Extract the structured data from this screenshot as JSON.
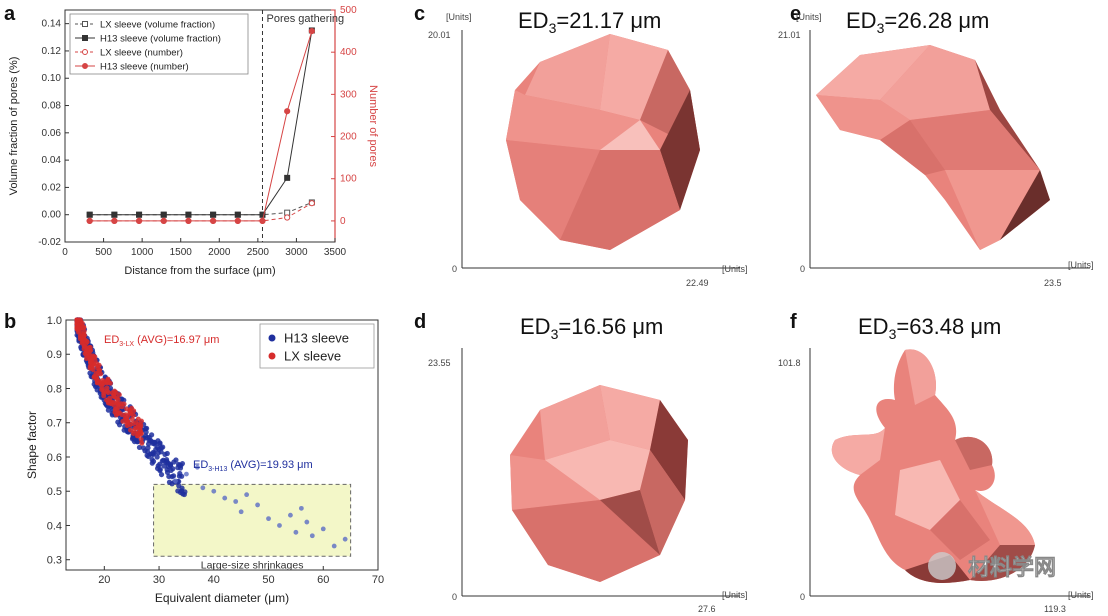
{
  "panels": {
    "a": {
      "letter": "a"
    },
    "b": {
      "letter": "b"
    },
    "c": {
      "letter": "c"
    },
    "d": {
      "letter": "d"
    },
    "e": {
      "letter": "e"
    },
    "f": {
      "letter": "f"
    }
  },
  "chart_data": [
    {
      "id": "a",
      "type": "line",
      "xlabel": "Distance from the surface (μm)",
      "ylabel": "Volume fraction of pores (%)",
      "y2label": "Number of pores",
      "xlim": [
        0,
        3500
      ],
      "ylim": [
        -0.02,
        0.15
      ],
      "y2lim": [
        -50,
        500
      ],
      "xticks": [
        "0",
        "500",
        "1000",
        "1500",
        "2000",
        "2500",
        "3000",
        "3500"
      ],
      "xtick_values": [
        0,
        500,
        1000,
        1500,
        2000,
        2500,
        3000,
        3500
      ],
      "yticks": [
        "-0.02",
        "0.00",
        "0.02",
        "0.04",
        "0.06",
        "0.08",
        "0.10",
        "0.12",
        "0.14"
      ],
      "ytick_values": [
        -0.02,
        0,
        0.02,
        0.04,
        0.06,
        0.08,
        0.1,
        0.12,
        0.14
      ],
      "y2ticks": [
        "0",
        "100",
        "200",
        "300",
        "400",
        "500"
      ],
      "y2tick_values": [
        0,
        100,
        200,
        300,
        400,
        500
      ],
      "annotation": "Pores gathering",
      "annotation_x": 2560,
      "x": [
        320,
        640,
        960,
        1280,
        1600,
        1920,
        2240,
        2560,
        2880,
        3200
      ],
      "series": [
        {
          "name": "LX sleeve (volume fraction)",
          "axis": "left",
          "color": "#555555",
          "dash": true,
          "marker": "square-open",
          "values": [
            0,
            0,
            0,
            0,
            0,
            0,
            0,
            0,
            0.0015,
            0.009
          ]
        },
        {
          "name": "H13 sleeve (volume fraction)",
          "axis": "left",
          "color": "#333333",
          "dash": false,
          "marker": "square",
          "values": [
            0,
            0,
            0,
            0,
            0,
            0,
            0,
            0,
            0.027,
            0.135
          ]
        },
        {
          "name": "LX sleeve (number)",
          "axis": "right",
          "color": "#d64545",
          "dash": true,
          "marker": "circle-open",
          "values": [
            0,
            0,
            0,
            0,
            0,
            0,
            0,
            0,
            8,
            42
          ]
        },
        {
          "name": "H13 sleeve (number)",
          "axis": "right",
          "color": "#d64545",
          "dash": false,
          "marker": "circle",
          "values": [
            0,
            0,
            0,
            0,
            0,
            0,
            0,
            0,
            260,
            450
          ]
        }
      ]
    },
    {
      "id": "b",
      "type": "scatter",
      "xlabel": "Equivalent diameter (μm)",
      "ylabel": "Shape factor",
      "xlim": [
        13,
        70
      ],
      "ylim": [
        0.27,
        1.0
      ],
      "xticks": [
        "20",
        "30",
        "40",
        "50",
        "60",
        "70"
      ],
      "xtick_values": [
        20,
        30,
        40,
        50,
        60,
        70
      ],
      "yticks": [
        "0.3",
        "0.4",
        "0.5",
        "0.6",
        "0.7",
        "0.8",
        "0.9",
        "1.0"
      ],
      "ytick_values": [
        0.3,
        0.4,
        0.5,
        0.6,
        0.7,
        0.8,
        0.9,
        1.0
      ],
      "legend": [
        {
          "name": "H13 sleeve",
          "color": "#1f2f9e"
        },
        {
          "name": "LX sleeve",
          "color": "#d62c2c"
        }
      ],
      "annotation_lx": "ED",
      "annotation_lx_sub": "3-LX",
      "annotation_lx_rest": " (AVG)=16.97 μm",
      "annotation_h13": "ED",
      "annotation_h13_sub": "3-H13",
      "annotation_h13_rest": " (AVG)=19.93 μm",
      "box_label": "Large-size shrinkages",
      "box_xrange": [
        29,
        65
      ],
      "box_yrange": [
        0.31,
        0.52
      ],
      "trend": [
        [
          15,
          1.0
        ],
        [
          16,
          0.95
        ],
        [
          17,
          0.9
        ],
        [
          18,
          0.86
        ],
        [
          20,
          0.8
        ],
        [
          22,
          0.75
        ],
        [
          25,
          0.7
        ],
        [
          28,
          0.64
        ],
        [
          32,
          0.56
        ],
        [
          36,
          0.52
        ]
      ],
      "h13_outliers": [
        [
          37,
          0.57
        ],
        [
          35,
          0.55
        ],
        [
          33,
          0.53
        ],
        [
          38,
          0.51
        ],
        [
          40,
          0.5
        ],
        [
          42,
          0.48
        ],
        [
          44,
          0.47
        ],
        [
          45,
          0.44
        ],
        [
          48,
          0.46
        ],
        [
          50,
          0.42
        ],
        [
          52,
          0.4
        ],
        [
          54,
          0.43
        ],
        [
          55,
          0.38
        ],
        [
          57,
          0.41
        ],
        [
          58,
          0.37
        ],
        [
          60,
          0.39
        ],
        [
          62,
          0.34
        ],
        [
          64,
          0.36
        ],
        [
          56,
          0.45
        ],
        [
          46,
          0.49
        ]
      ]
    }
  ],
  "shapes": {
    "c": {
      "label": "ED",
      "sub": "3",
      "value": "=21.17 μm",
      "units": "[Units]",
      "ymax": "20.01",
      "xmax": "22.49",
      "zero": "0"
    },
    "e": {
      "label": "ED",
      "sub": "3",
      "value": "=26.28 μm",
      "units": "[Units]",
      "ymax": "21.01",
      "xmax": "23.5",
      "zero": "0"
    },
    "d": {
      "label": "ED",
      "sub": "3",
      "value": "=16.56 μm",
      "units": "[Units]",
      "ymax": "23.55",
      "xmax": "27.6",
      "zero": "0"
    },
    "f": {
      "label": "ED",
      "sub": "3",
      "value": "=63.48 μm",
      "units": "[Units]",
      "ymax": "101.8",
      "xmax": "119.3",
      "zero": "0"
    }
  },
  "colors": {
    "pore_light": "#f08e86",
    "pore_mid": "#e07a74",
    "pore_dark": "#8a3a37",
    "box_fill": "#f3f7c8"
  },
  "watermark": {
    "text": "材料学网"
  }
}
